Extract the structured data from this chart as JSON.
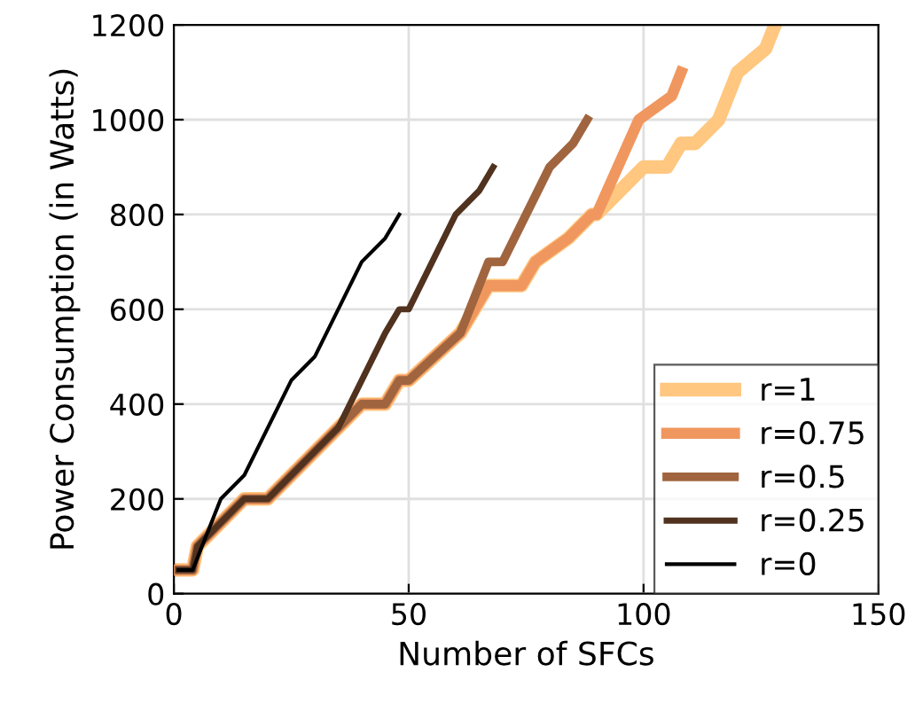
{
  "chart_data": {
    "type": "line",
    "xlabel": "Number of SFCs",
    "ylabel": "Power Consumption (in Watts)",
    "xlim": [
      0,
      150
    ],
    "ylim": [
      0,
      1200
    ],
    "xticks": [
      0,
      50,
      100,
      150
    ],
    "yticks": [
      0,
      200,
      400,
      600,
      800,
      1000,
      1200
    ],
    "grid": true,
    "legend": "bottom right",
    "line_style": "solid",
    "marker": "none",
    "series": [
      {
        "name": "r=1",
        "color": "#ffc77f",
        "x": [
          1,
          4,
          5,
          15,
          20,
          35,
          40,
          45,
          48,
          50,
          61,
          67,
          74,
          77,
          84,
          89,
          90,
          100,
          105,
          108,
          111,
          116,
          120,
          126,
          128
        ],
        "values": [
          50,
          50,
          100,
          200,
          200,
          350,
          400,
          400,
          450,
          450,
          550,
          650,
          650,
          700,
          750,
          800,
          800,
          900,
          900,
          950,
          950,
          1000,
          1100,
          1150,
          1200
        ]
      },
      {
        "name": "r=0.75",
        "color": "#f0975f",
        "x": [
          1,
          4,
          5,
          15,
          20,
          35,
          40,
          45,
          48,
          50,
          61,
          67,
          74,
          77,
          84,
          89,
          90,
          99,
          106,
          108
        ],
        "values": [
          50,
          50,
          100,
          200,
          200,
          350,
          400,
          400,
          450,
          450,
          550,
          650,
          650,
          700,
          750,
          800,
          800,
          1000,
          1050,
          1100
        ]
      },
      {
        "name": "r=0.5",
        "color": "#a0653f",
        "x": [
          1,
          4,
          5,
          15,
          20,
          35,
          40,
          45,
          48,
          50,
          61,
          67,
          70,
          80,
          85,
          88
        ],
        "values": [
          50,
          50,
          100,
          200,
          200,
          350,
          400,
          400,
          450,
          450,
          550,
          700,
          700,
          900,
          950,
          1000
        ]
      },
      {
        "name": "r=0.25",
        "color": "#50321f",
        "x": [
          1,
          4,
          5,
          15,
          20,
          35,
          45,
          48,
          50,
          60,
          65,
          68
        ],
        "values": [
          50,
          50,
          100,
          200,
          200,
          350,
          550,
          600,
          600,
          800,
          850,
          900
        ]
      },
      {
        "name": "r=0",
        "color": "#000000",
        "x": [
          1,
          4,
          10,
          15,
          25,
          30,
          40,
          45,
          48
        ],
        "values": [
          50,
          50,
          200,
          250,
          450,
          500,
          700,
          750,
          800
        ]
      }
    ]
  }
}
